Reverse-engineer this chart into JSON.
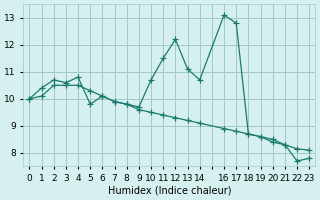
{
  "xlabel": "Humidex (Indice chaleur)",
  "ylabel": "",
  "background_color": "#d6f0f0",
  "grid_color": "#a0c8c8",
  "line_color": "#1a7a6e",
  "xlim": [
    -0.5,
    23.5
  ],
  "ylim": [
    7.5,
    13.5
  ],
  "yticks": [
    8,
    9,
    10,
    11,
    12,
    13
  ],
  "xtick_positions": [
    0,
    1,
    2,
    3,
    4,
    5,
    6,
    7,
    8,
    9,
    10,
    11,
    12,
    13,
    14,
    15,
    16,
    17,
    18,
    19,
    20,
    21,
    22,
    23
  ],
  "xtick_labels": [
    "0",
    "1",
    "2",
    "3",
    "4",
    "5",
    "6",
    "7",
    "8",
    "9",
    "10",
    "11",
    "12",
    "13",
    "14",
    "",
    "16",
    "17",
    "18",
    "19",
    "20",
    "21",
    "22",
    "23"
  ],
  "line1_x": [
    0,
    1,
    2,
    3,
    4,
    5,
    6,
    7,
    8,
    9,
    10,
    11,
    12,
    13,
    14,
    16,
    17,
    18,
    19,
    20,
    21,
    22,
    23
  ],
  "line1_y": [
    10.0,
    10.4,
    10.7,
    10.6,
    10.8,
    9.8,
    10.1,
    9.9,
    9.8,
    9.7,
    10.7,
    11.5,
    12.2,
    11.1,
    10.7,
    13.1,
    12.8,
    8.7,
    8.6,
    8.5,
    8.3,
    7.7,
    7.8
  ],
  "line2_x": [
    0,
    1,
    2,
    3,
    4,
    5,
    6,
    7,
    8,
    9,
    10,
    11,
    12,
    13,
    14,
    16,
    17,
    18,
    19,
    20,
    21,
    22,
    23
  ],
  "line2_y": [
    10.0,
    10.1,
    10.5,
    10.5,
    10.5,
    10.3,
    10.1,
    9.9,
    9.8,
    9.6,
    9.5,
    9.4,
    9.3,
    9.2,
    9.1,
    8.9,
    8.8,
    8.7,
    8.6,
    8.4,
    8.3,
    8.15,
    8.1
  ]
}
